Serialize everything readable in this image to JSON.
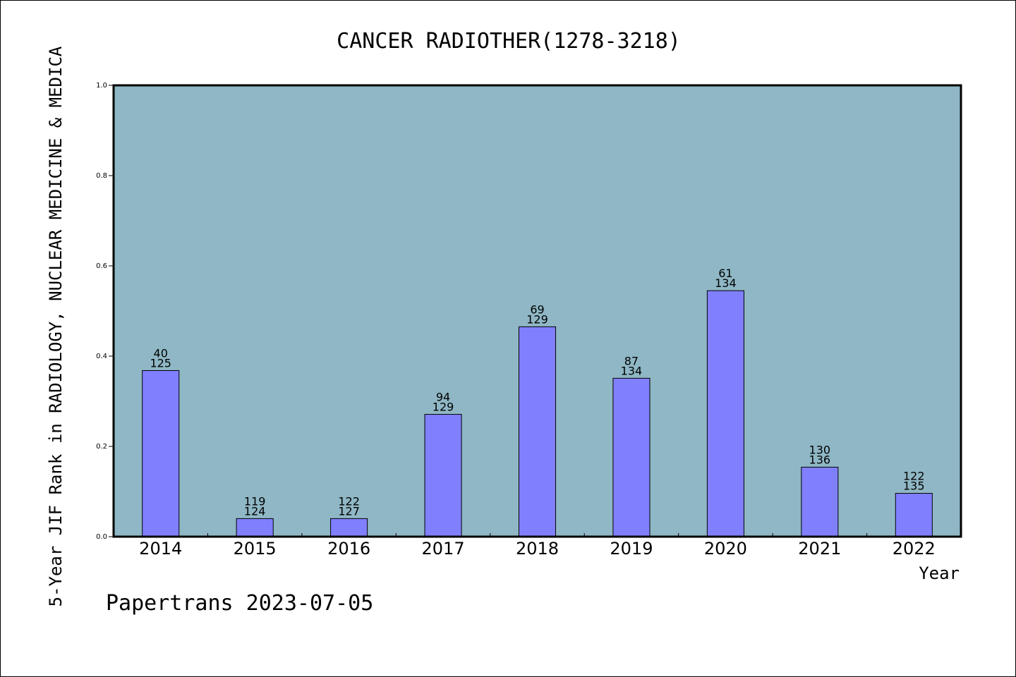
{
  "chart_data": {
    "type": "bar",
    "title": "CANCER RADIOTHER(1278-3218)",
    "xlabel": "Year",
    "ylabel": "5-Year JIF Rank in RADIOLOGY, NUCLEAR MEDICINE & MEDICA",
    "ylim": [
      0,
      1.0
    ],
    "yticks": [
      "0.0",
      "0.2",
      "0.4",
      "0.6",
      "0.8",
      "1.0"
    ],
    "grid": false,
    "categories": [
      "2014",
      "2015",
      "2016",
      "2017",
      "2018",
      "2019",
      "2020",
      "2021",
      "2022"
    ],
    "values": [
      0.368,
      0.04,
      0.04,
      0.271,
      0.465,
      0.351,
      0.545,
      0.154,
      0.096
    ],
    "labels_top": [
      "40",
      "119",
      "122",
      "94",
      "69",
      "87",
      "61",
      "130",
      "122"
    ],
    "labels_bottom": [
      "125",
      "124",
      "127",
      "129",
      "129",
      "134",
      "134",
      "136",
      "135"
    ],
    "bar_color": "#8080ff",
    "plot_background": "#8fb7c5"
  },
  "footer": "Papertrans 2023-07-05"
}
